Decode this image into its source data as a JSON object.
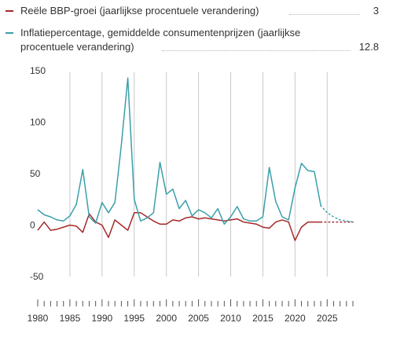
{
  "chart_data": {
    "type": "line",
    "title": "",
    "xlabel": "",
    "ylabel": "",
    "xlim": [
      1980,
      2029
    ],
    "ylim": [
      -50,
      150
    ],
    "yticks": [
      150,
      100,
      50,
      0,
      -50
    ],
    "xticks": [
      1980,
      1985,
      1990,
      1995,
      2000,
      2005,
      2010,
      2015,
      2020,
      2025
    ],
    "vertical_gridlines": [
      1985,
      1990,
      1995,
      2000,
      2005,
      2010,
      2015,
      2020,
      2025
    ],
    "grid": "vertical",
    "legend_position": "top",
    "series": [
      {
        "name": "Reële BBP-groei (jaarlijkse procentuele verandering)",
        "color": "#a52a2a",
        "latest_value": "3",
        "x": [
          1980,
          1981,
          1982,
          1983,
          1984,
          1985,
          1986,
          1987,
          1988,
          1989,
          1990,
          1991,
          1992,
          1993,
          1994,
          1995,
          1996,
          1997,
          1998,
          1999,
          2000,
          2001,
          2002,
          2003,
          2004,
          2005,
          2006,
          2007,
          2008,
          2009,
          2010,
          2011,
          2012,
          2013,
          2014,
          2015,
          2016,
          2017,
          2018,
          2019,
          2020,
          2021,
          2022,
          2023,
          2024
        ],
        "values": [
          -5,
          3,
          -5,
          -4,
          -2,
          0,
          -1,
          -7,
          11,
          3,
          0,
          -12,
          5,
          0,
          -5,
          12,
          12,
          8,
          4,
          1,
          1,
          5,
          4,
          7,
          8,
          6,
          7,
          6,
          5,
          4,
          5,
          6,
          3,
          2,
          1,
          -2,
          -3,
          3,
          5,
          3,
          -15,
          -2,
          3,
          3,
          3
        ],
        "forecast": {
          "x": [
            2024,
            2025,
            2026,
            2027,
            2028,
            2029
          ],
          "values": [
            3,
            3,
            3,
            3,
            3,
            3
          ]
        }
      },
      {
        "name": "Inflatiepercentage, gemiddelde consumentenprijzen (jaarlijkse procentuele verandering)",
        "color": "#3a9fab",
        "latest_value": "12.8",
        "x": [
          1980,
          1981,
          1982,
          1983,
          1984,
          1985,
          1986,
          1987,
          1988,
          1989,
          1990,
          1991,
          1992,
          1993,
          1994,
          1995,
          1996,
          1997,
          1998,
          1999,
          2000,
          2001,
          2002,
          2003,
          2004,
          2005,
          2006,
          2007,
          2008,
          2009,
          2010,
          2011,
          2012,
          2013,
          2014,
          2015,
          2016,
          2017,
          2018,
          2019,
          2020,
          2021,
          2022,
          2023,
          2024
        ],
        "values": [
          15,
          10,
          8,
          5,
          4,
          9,
          20,
          54,
          8,
          2,
          22,
          12,
          22,
          78,
          143,
          25,
          4,
          7,
          12,
          61,
          30,
          35,
          16,
          24,
          9,
          15,
          12,
          7,
          16,
          1,
          8,
          18,
          6,
          4,
          4,
          8,
          56,
          23,
          8,
          5,
          36,
          60,
          53,
          52,
          19
        ],
        "forecast": {
          "x": [
            2024,
            2025,
            2026,
            2027,
            2028,
            2029
          ],
          "values": [
            19,
            12,
            8,
            5,
            4,
            3
          ]
        }
      }
    ]
  }
}
